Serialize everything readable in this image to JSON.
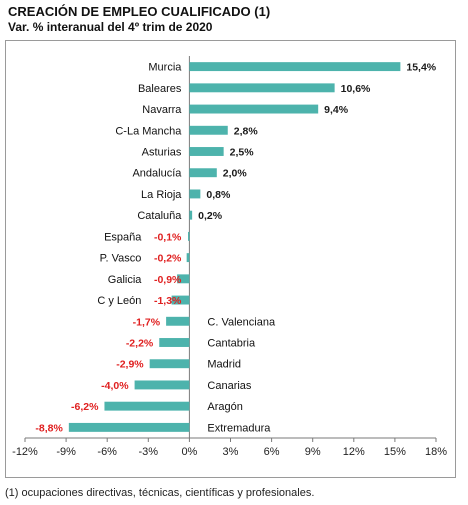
{
  "chart_data": {
    "type": "bar",
    "orientation": "horizontal",
    "title": "CREACIÓN DE EMPLEO CUALIFICADO (1)",
    "subtitle": "Var. % interanual del 4º trim de 2020",
    "footnote": "(1) ocupaciones directivas, técnicas, científicas y profesionales.",
    "categories": [
      "Murcia",
      "Baleares",
      "Navarra",
      "C-La Mancha",
      "Asturias",
      "Andalucía",
      "La Rioja",
      "Cataluña",
      "España",
      "P. Vasco",
      "Galicia",
      "C y León",
      "C. Valenciana",
      "Cantabria",
      "Madrid",
      "Canarias",
      "Aragón",
      "Extremadura"
    ],
    "values": [
      15.4,
      10.6,
      9.4,
      2.8,
      2.5,
      2.0,
      0.8,
      0.2,
      -0.1,
      -0.2,
      -0.9,
      -1.3,
      -1.7,
      -2.2,
      -2.9,
      -4.0,
      -6.2,
      -8.8
    ],
    "value_labels": [
      "15,4%",
      "10,6%",
      "9,4%",
      "2,8%",
      "2,5%",
      "2,0%",
      "0,8%",
      "0,2%",
      "-0,1%",
      "-0,2%",
      "-0,9%",
      "-1,3%",
      "-1,7%",
      "-2,2%",
      "-2,9%",
      "-4,0%",
      "-6,2%",
      "-8,8%"
    ],
    "xlim": [
      -12,
      18
    ],
    "xticks": [
      -12,
      -9,
      -6,
      -3,
      0,
      3,
      6,
      9,
      12,
      15,
      18
    ],
    "xtick_labels": [
      "-12%",
      "-9%",
      "-6%",
      "-3%",
      "0%",
      "3%",
      "6%",
      "9%",
      "12%",
      "15%",
      "18%"
    ],
    "grid": false,
    "colors": {
      "bar": "#4db3ac",
      "positive_label": "#1a1a1a",
      "negative_label": "#e02020"
    }
  }
}
